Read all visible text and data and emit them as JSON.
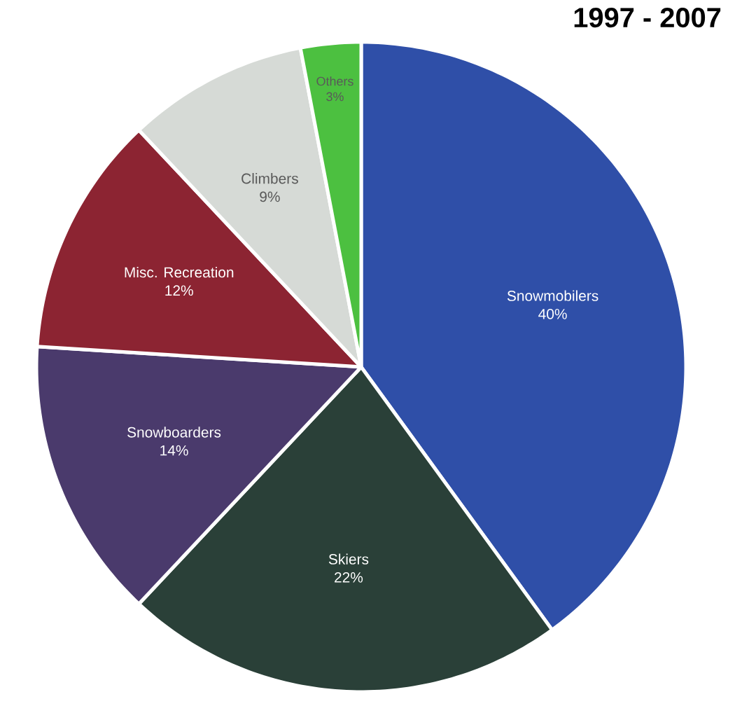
{
  "chart_data": {
    "type": "pie",
    "title": "1997 - 2007",
    "categories": [
      "Snowmobilers",
      "Skiers",
      "Snowboarders",
      "Misc. Recreation",
      "Climbers",
      "Others"
    ],
    "values": [
      40,
      22,
      14,
      12,
      9,
      3
    ],
    "value_labels": [
      "40%",
      "22%",
      "14%",
      "12%",
      "9%",
      "3%"
    ],
    "colors": [
      "#2f4fa8",
      "#2a4038",
      "#4a3a6c",
      "#8c2432",
      "#d6dad6",
      "#4cc040"
    ]
  }
}
